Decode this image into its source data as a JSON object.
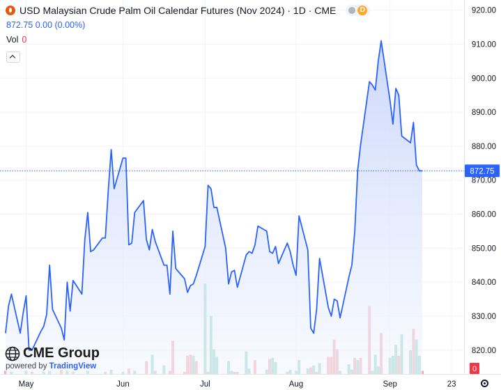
{
  "header": {
    "title": "USD Malaysian Crude Palm Oil Calendar Futures (Nov 2024) · 1D · CME",
    "pill_letter": "D",
    "quote": "872.75 0.00 (0.00%)",
    "vol_label": "Vol",
    "vol_value": "0"
  },
  "logo": {
    "brand": "CME Group",
    "powered": "powered by",
    "tv": "TradingView"
  },
  "colors": {
    "line": "#2962ff",
    "area_top": "#c9d6fb",
    "area_bottom": "#f3f6ff",
    "vol_up": "#8fd1c3",
    "vol_down": "#f0a5a8",
    "price_tag": "#2962ff",
    "vol_tag": "#f23645",
    "grid": "#f0f3fa"
  },
  "chart_data": {
    "type": "area",
    "ylim": [
      813,
      923
    ],
    "y_ticks": [
      820,
      830,
      840,
      850,
      860,
      870,
      880,
      890,
      900,
      910,
      920
    ],
    "y_tick_labels": [
      "820.00",
      "830.00",
      "840.00",
      "850.00",
      "860.00",
      "870.00",
      "880.00",
      "890.00",
      "900.00",
      "910.00",
      "920.00"
    ],
    "x_labels": [
      "May",
      "Jun",
      "Jul",
      "Aug",
      "Sep",
      "23"
    ],
    "x_label_dates": [
      "2024-05-01",
      "2024-06-03",
      "2024-07-01",
      "2024-08-01",
      "2024-09-02",
      "2024-09-23"
    ],
    "last_price": 872.75,
    "last_price_label": "872.75",
    "volume_last_label": "0",
    "volume_ylim": [
      0,
      90
    ],
    "series": [
      {
        "values": [
          [
            "2024-04-24",
            825
          ],
          [
            "2024-04-25",
            833
          ],
          [
            "2024-04-26",
            836.5
          ],
          [
            "2024-04-29",
            825
          ],
          [
            "2024-04-30",
            831
          ],
          [
            "2024-05-01",
            836
          ],
          [
            "2024-05-02",
            820
          ],
          [
            "2024-05-03",
            820
          ],
          [
            "2024-05-06",
            825.5
          ],
          [
            "2024-05-07",
            827
          ],
          [
            "2024-05-08",
            830.5
          ],
          [
            "2024-05-09",
            845
          ],
          [
            "2024-05-10",
            832
          ],
          [
            "2024-05-13",
            826.5
          ],
          [
            "2024-05-14",
            823
          ],
          [
            "2024-05-15",
            840
          ],
          [
            "2024-05-16",
            831.5
          ],
          [
            "2024-05-17",
            840.5
          ],
          [
            "2024-05-20",
            836.5
          ],
          [
            "2024-05-21",
            852.5
          ],
          [
            "2024-05-22",
            860.5
          ],
          [
            "2024-05-23",
            849
          ],
          [
            "2024-05-24",
            849.5
          ],
          [
            "2024-05-27",
            853
          ],
          [
            "2024-05-28",
            853
          ],
          [
            "2024-05-29",
            867
          ],
          [
            "2024-05-30",
            879
          ],
          [
            "2024-05-31",
            867.5
          ],
          [
            "2024-06-03",
            876.5
          ],
          [
            "2024-06-04",
            876.5
          ],
          [
            "2024-06-05",
            851
          ],
          [
            "2024-06-06",
            851.5
          ],
          [
            "2024-06-07",
            860.5
          ],
          [
            "2024-06-10",
            864
          ],
          [
            "2024-06-11",
            852.5
          ],
          [
            "2024-06-12",
            849.5
          ],
          [
            "2024-06-13",
            855.5
          ],
          [
            "2024-06-14",
            852
          ],
          [
            "2024-06-17",
            845
          ],
          [
            "2024-06-18",
            845
          ],
          [
            "2024-06-19",
            836.5
          ],
          [
            "2024-06-20",
            855
          ],
          [
            "2024-06-21",
            844
          ],
          [
            "2024-06-24",
            841
          ],
          [
            "2024-06-25",
            837
          ],
          [
            "2024-06-26",
            839
          ],
          [
            "2024-06-27",
            839.5
          ],
          [
            "2024-06-28",
            842
          ],
          [
            "2024-07-01",
            850.5
          ],
          [
            "2024-07-02",
            868.5
          ],
          [
            "2024-07-03",
            867.5
          ],
          [
            "2024-07-04",
            862
          ],
          [
            "2024-07-05",
            862
          ],
          [
            "2024-07-08",
            850
          ],
          [
            "2024-07-09",
            839.5
          ],
          [
            "2024-07-10",
            843
          ],
          [
            "2024-07-11",
            843.5
          ],
          [
            "2024-07-12",
            838.5
          ],
          [
            "2024-07-15",
            848
          ],
          [
            "2024-07-16",
            849
          ],
          [
            "2024-07-17",
            848.5
          ],
          [
            "2024-07-18",
            851
          ],
          [
            "2024-07-19",
            856.5
          ],
          [
            "2024-07-22",
            855
          ],
          [
            "2024-07-23",
            849
          ],
          [
            "2024-07-24",
            848.5
          ],
          [
            "2024-07-25",
            850.5
          ],
          [
            "2024-07-26",
            845.5
          ],
          [
            "2024-07-29",
            851.5
          ],
          [
            "2024-07-30",
            849
          ],
          [
            "2024-07-31",
            845
          ],
          [
            "2024-08-01",
            842
          ],
          [
            "2024-08-02",
            859.5
          ],
          [
            "2024-08-05",
            849.5
          ],
          [
            "2024-08-06",
            826.5
          ],
          [
            "2024-08-07",
            825
          ],
          [
            "2024-08-08",
            832
          ],
          [
            "2024-08-09",
            847
          ],
          [
            "2024-08-12",
            832.5
          ],
          [
            "2024-08-13",
            830
          ],
          [
            "2024-08-14",
            835
          ],
          [
            "2024-08-15",
            834.5
          ],
          [
            "2024-08-16",
            829.5
          ],
          [
            "2024-08-19",
            841.5
          ],
          [
            "2024-08-20",
            845
          ],
          [
            "2024-08-21",
            855
          ],
          [
            "2024-08-22",
            873
          ],
          [
            "2024-08-23",
            880.5
          ],
          [
            "2024-08-26",
            899
          ],
          [
            "2024-08-27",
            898
          ],
          [
            "2024-08-28",
            896.5
          ],
          [
            "2024-08-29",
            905
          ],
          [
            "2024-08-30",
            911
          ],
          [
            "2024-09-02",
            893.5
          ],
          [
            "2024-09-03",
            886.5
          ],
          [
            "2024-09-04",
            897
          ],
          [
            "2024-09-05",
            895
          ],
          [
            "2024-09-06",
            883
          ],
          [
            "2024-09-09",
            881
          ],
          [
            "2024-09-10",
            887
          ],
          [
            "2024-09-11",
            874.5
          ],
          [
            "2024-09-12",
            872.75
          ],
          [
            "2024-09-13",
            872.75
          ]
        ]
      }
    ],
    "volume": [
      [
        "2024-04-24",
        3,
        "down"
      ],
      [
        "2024-04-26",
        2,
        "up"
      ],
      [
        "2024-05-01",
        3,
        "up"
      ],
      [
        "2024-05-03",
        2,
        "down"
      ],
      [
        "2024-05-07",
        2,
        "up"
      ],
      [
        "2024-05-09",
        3,
        "up"
      ],
      [
        "2024-05-13",
        4,
        "down"
      ],
      [
        "2024-05-15",
        3,
        "up"
      ],
      [
        "2024-05-17",
        2,
        "up"
      ],
      [
        "2024-05-22",
        3,
        "up"
      ],
      [
        "2024-05-28",
        2,
        "down"
      ],
      [
        "2024-05-30",
        4,
        "up"
      ],
      [
        "2024-06-03",
        2,
        "up"
      ],
      [
        "2024-06-05",
        5,
        "down"
      ],
      [
        "2024-06-07",
        3,
        "up"
      ],
      [
        "2024-06-11",
        12,
        "down"
      ],
      [
        "2024-06-13",
        18,
        "up"
      ],
      [
        "2024-06-14",
        3,
        "down"
      ],
      [
        "2024-06-17",
        8,
        "up"
      ],
      [
        "2024-06-19",
        3,
        "down"
      ],
      [
        "2024-06-20",
        31,
        "down"
      ],
      [
        "2024-06-24",
        2,
        "down"
      ],
      [
        "2024-06-25",
        17,
        "down"
      ],
      [
        "2024-06-26",
        18,
        "down"
      ],
      [
        "2024-06-27",
        17,
        "up"
      ],
      [
        "2024-06-28",
        12,
        "down"
      ],
      [
        "2024-07-01",
        84,
        "up"
      ],
      [
        "2024-07-02",
        2,
        "down"
      ],
      [
        "2024-07-03",
        54,
        "up"
      ],
      [
        "2024-07-04",
        23,
        "up"
      ],
      [
        "2024-07-05",
        16,
        "up"
      ],
      [
        "2024-07-09",
        12,
        "up"
      ],
      [
        "2024-07-10",
        3,
        "up"
      ],
      [
        "2024-07-11",
        2,
        "down"
      ],
      [
        "2024-07-12",
        2,
        "down"
      ],
      [
        "2024-07-15",
        21,
        "up"
      ],
      [
        "2024-07-16",
        5,
        "up"
      ],
      [
        "2024-07-18",
        13,
        "down"
      ],
      [
        "2024-07-22",
        4,
        "up"
      ],
      [
        "2024-07-23",
        14,
        "down"
      ],
      [
        "2024-07-24",
        15,
        "up"
      ],
      [
        "2024-07-25",
        11,
        "up"
      ],
      [
        "2024-07-29",
        2,
        "down"
      ],
      [
        "2024-07-30",
        4,
        "up"
      ],
      [
        "2024-08-01",
        3,
        "up"
      ],
      [
        "2024-08-02",
        13,
        "up"
      ],
      [
        "2024-08-05",
        5,
        "up"
      ],
      [
        "2024-08-06",
        6,
        "down"
      ],
      [
        "2024-08-07",
        8,
        "up"
      ],
      [
        "2024-08-08",
        2,
        "down"
      ],
      [
        "2024-08-09",
        10,
        "up"
      ],
      [
        "2024-08-12",
        16,
        "down"
      ],
      [
        "2024-08-13",
        16,
        "down"
      ],
      [
        "2024-08-14",
        32,
        "down"
      ],
      [
        "2024-08-15",
        23,
        "down"
      ],
      [
        "2024-08-16",
        3,
        "up"
      ],
      [
        "2024-08-19",
        9,
        "up"
      ],
      [
        "2024-08-20",
        4,
        "up"
      ],
      [
        "2024-08-21",
        15,
        "down"
      ],
      [
        "2024-08-22",
        13,
        "up"
      ],
      [
        "2024-08-23",
        15,
        "down"
      ],
      [
        "2024-08-26",
        63,
        "down"
      ],
      [
        "2024-08-27",
        3,
        "up"
      ],
      [
        "2024-08-28",
        18,
        "up"
      ],
      [
        "2024-08-29",
        7,
        "up"
      ],
      [
        "2024-08-30",
        38,
        "down"
      ],
      [
        "2024-09-02",
        15,
        "up"
      ],
      [
        "2024-09-03",
        17,
        "up"
      ],
      [
        "2024-09-04",
        27,
        "up"
      ],
      [
        "2024-09-05",
        17,
        "down"
      ],
      [
        "2024-09-06",
        37,
        "up"
      ],
      [
        "2024-09-09",
        22,
        "up"
      ],
      [
        "2024-09-10",
        42,
        "down"
      ],
      [
        "2024-09-11",
        32,
        "up"
      ],
      [
        "2024-09-12",
        17,
        "up"
      ],
      [
        "2024-09-13",
        3,
        "down"
      ]
    ]
  }
}
